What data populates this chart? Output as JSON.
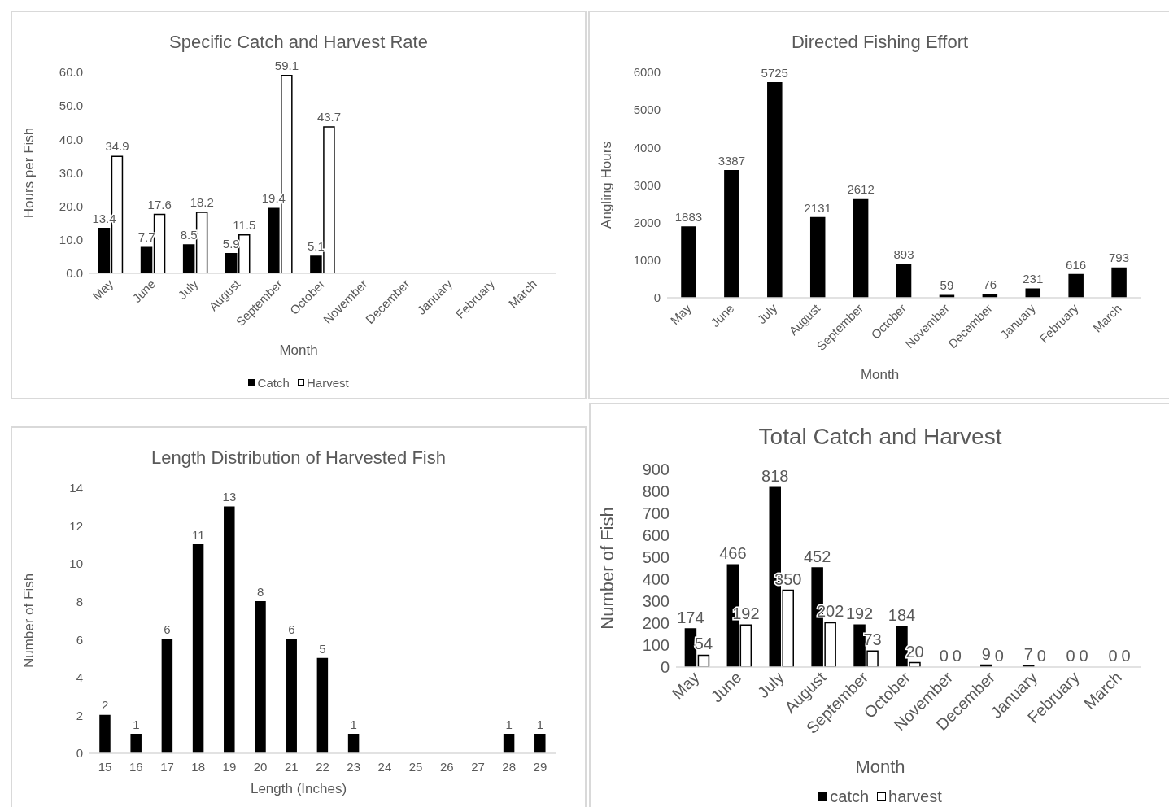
{
  "chart_data": [
    {
      "type": "bar",
      "title": "Specific Catch and Harvest Rate",
      "xlabel": "Month",
      "ylabel": "Hours per Fish",
      "categories": [
        "May",
        "June",
        "July",
        "August",
        "September",
        "October",
        "November",
        "December",
        "January",
        "February",
        "March"
      ],
      "series": [
        {
          "name": "Catch",
          "color": "#000000",
          "values": [
            13.4,
            7.7,
            8.5,
            5.9,
            19.4,
            5.1,
            null,
            null,
            null,
            null,
            null
          ]
        },
        {
          "name": "Harvest",
          "color": "#ffffff",
          "values": [
            34.9,
            17.6,
            18.2,
            11.5,
            59.1,
            43.7,
            null,
            null,
            null,
            null,
            null
          ]
        }
      ],
      "ylim": [
        0,
        60
      ],
      "yticks": [
        {
          "value": 0,
          "label": "0.0"
        },
        {
          "value": 10,
          "label": "10.0"
        },
        {
          "value": 20,
          "label": "20.0"
        },
        {
          "value": 30,
          "label": "30.0"
        },
        {
          "value": 40,
          "label": "40.0"
        },
        {
          "value": 50,
          "label": "50.0"
        },
        {
          "value": 60,
          "label": "60.0"
        }
      ],
      "data_labels": true,
      "legend": "bottom"
    },
    {
      "type": "bar",
      "title": "Directed Fishing Effort",
      "xlabel": "Month",
      "ylabel": "Angling Hours",
      "categories": [
        "May",
        "June",
        "July",
        "August",
        "September",
        "October",
        "November",
        "December",
        "January",
        "February",
        "March"
      ],
      "series": [
        {
          "color": "#000000",
          "values": [
            1883,
            3387,
            5725,
            2131,
            2612,
            893,
            59,
            76,
            231,
            616,
            793
          ]
        }
      ],
      "ylim": [
        0,
        6000
      ],
      "yticks": [
        0,
        1000,
        2000,
        3000,
        4000,
        5000,
        6000
      ],
      "data_labels": true
    },
    {
      "type": "bar",
      "title": "Length Distribution of Harvested Fish",
      "xlabel": "Length (Inches)",
      "ylabel": "Number of Fish",
      "categories": [
        "15",
        "16",
        "17",
        "18",
        "19",
        "20",
        "21",
        "22",
        "23",
        "24",
        "25",
        "26",
        "27",
        "28",
        "29"
      ],
      "series": [
        {
          "color": "#000000",
          "values": [
            2,
            1,
            6,
            11,
            13,
            8,
            6,
            5,
            1,
            0,
            0,
            0,
            0,
            1,
            1
          ],
          "value_labels": [
            "2",
            "1",
            "6",
            "11",
            "13",
            "8",
            "6",
            "5",
            "1",
            null,
            null,
            null,
            null,
            "1",
            "1"
          ]
        }
      ],
      "ylim": [
        0,
        14
      ],
      "yticks": [
        0,
        2,
        4,
        6,
        8,
        10,
        12,
        14
      ]
    },
    {
      "type": "bar",
      "title": "Total Catch and Harvest",
      "xlabel": "Month",
      "ylabel": "Number of Fish",
      "categories": [
        "May",
        "June",
        "July",
        "August",
        "September",
        "October",
        "November",
        "December",
        "January",
        "February",
        "March"
      ],
      "series": [
        {
          "name": "catch",
          "color": "#000000",
          "values": [
            174,
            466,
            818,
            452,
            192,
            184,
            0,
            9,
            7,
            0,
            0
          ]
        },
        {
          "name": "harvest",
          "color": "#ffffff",
          "values": [
            54,
            192,
            350,
            202,
            73,
            20,
            0,
            0,
            0,
            0,
            0
          ]
        }
      ],
      "ylim": [
        0,
        900
      ],
      "yticks": [
        0,
        100,
        200,
        300,
        400,
        500,
        600,
        700,
        800,
        900
      ],
      "data_labels": true,
      "legend": "bottom"
    }
  ]
}
